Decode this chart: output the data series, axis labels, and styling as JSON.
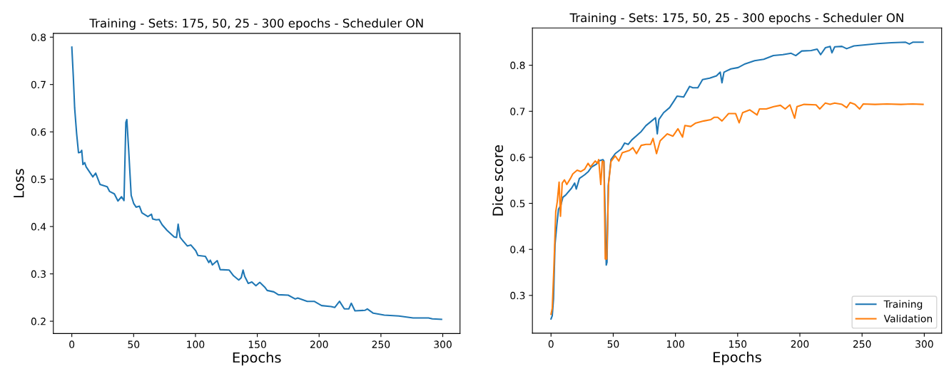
{
  "chart_data": [
    {
      "type": "line",
      "title": "Training - Sets: 175, 50, 25 - 300 epochs - Scheduler ON",
      "xlabel": "Epochs",
      "ylabel": "Loss",
      "xlim": [
        -14.95,
        313.95
      ],
      "ylim": [
        0.174,
        0.808
      ],
      "xticks": [
        0,
        50,
        100,
        150,
        200,
        250,
        300
      ],
      "yticks": [
        0.2,
        0.3,
        0.4,
        0.5,
        0.6,
        0.7,
        0.8
      ],
      "grid": false,
      "legend": false,
      "series": [
        {
          "color": "#1f77b4",
          "x": [
            0,
            1.2,
            2.3,
            3.9,
            5.4,
            7,
            8,
            9,
            10.4,
            11.6,
            17,
            19.3,
            22.8,
            28.6,
            30.6,
            34.4,
            37.3,
            40.2,
            42.2,
            43.7,
            44.5,
            46,
            48,
            50,
            52,
            54.7,
            56.7,
            61.5,
            64.4,
            65.4,
            68.3,
            70.6,
            73,
            77,
            82.8,
            84.7,
            86,
            87.6,
            93.4,
            96.3,
            100.2,
            102,
            108,
            110.8,
            112,
            113.7,
            117.6,
            120,
            127.3,
            130.8,
            135,
            137,
            138.5,
            139.8,
            142.7,
            145.6,
            148.9,
            152,
            156,
            158,
            163.4,
            167,
            175,
            180.7,
            182.7,
            190.4,
            196,
            202,
            209.7,
            212.6,
            216.5,
            220.4,
            224,
            226,
            229,
            237,
            239,
            243.8,
            252.7,
            264.5,
            276,
            288.5,
            291.5,
            299
          ],
          "values": [
            0.779,
            0.717,
            0.65,
            0.596,
            0.556,
            0.557,
            0.561,
            0.531,
            0.535,
            0.526,
            0.505,
            0.513,
            0.489,
            0.484,
            0.474,
            0.469,
            0.454,
            0.463,
            0.455,
            0.62,
            0.626,
            0.561,
            0.466,
            0.449,
            0.441,
            0.443,
            0.429,
            0.421,
            0.426,
            0.416,
            0.414,
            0.415,
            0.404,
            0.392,
            0.378,
            0.377,
            0.405,
            0.377,
            0.359,
            0.361,
            0.349,
            0.339,
            0.337,
            0.324,
            0.329,
            0.319,
            0.328,
            0.309,
            0.308,
            0.296,
            0.287,
            0.292,
            0.308,
            0.295,
            0.28,
            0.283,
            0.275,
            0.282,
            0.272,
            0.265,
            0.262,
            0.256,
            0.255,
            0.247,
            0.249,
            0.242,
            0.242,
            0.233,
            0.231,
            0.229,
            0.242,
            0.226,
            0.226,
            0.238,
            0.222,
            0.223,
            0.226,
            0.217,
            0.213,
            0.211,
            0.207,
            0.207,
            0.205,
            0.204
          ]
        }
      ]
    },
    {
      "type": "line",
      "title": "Training - Sets: 175, 50, 25 - 300 epochs - Scheduler ON",
      "xlabel": "Epochs",
      "ylabel": "Dice score",
      "xlim": [
        -14.95,
        313.95
      ],
      "ylim": [
        0.218,
        0.881
      ],
      "xticks": [
        0,
        50,
        100,
        150,
        200,
        250,
        300
      ],
      "yticks": [
        0.3,
        0.4,
        0.5,
        0.6,
        0.7,
        0.8
      ],
      "grid": false,
      "legend": "bottom right",
      "series": [
        {
          "name": "Training",
          "color": "#1f77b4",
          "x": [
            0,
            1,
            2,
            3.2,
            4.6,
            6,
            8,
            9.5,
            11.8,
            16.5,
            19,
            20.3,
            22.8,
            27,
            30,
            32.6,
            36.4,
            38.3,
            41.7,
            42.5,
            43.6,
            44.4,
            45,
            46,
            48.2,
            51.6,
            56.4,
            59.2,
            62,
            65,
            69.6,
            72.5,
            76.3,
            80,
            84,
            85.4,
            86.7,
            90.5,
            95.3,
            99,
            101.3,
            106.6,
            111.4,
            114,
            118,
            121.8,
            127.5,
            133,
            136,
            137.4,
            139,
            144.6,
            150.4,
            156,
            163.6,
            171,
            178.7,
            186.3,
            193,
            196.7,
            201.5,
            209,
            213.9,
            216.7,
            220.5,
            224.3,
            225.8,
            228,
            233.8,
            237.6,
            243.4,
            251,
            262.4,
            273.6,
            285,
            288,
            290.7,
            299
          ],
          "values": [
            0.249,
            0.256,
            0.292,
            0.41,
            0.451,
            0.487,
            0.497,
            0.513,
            0.518,
            0.533,
            0.544,
            0.531,
            0.554,
            0.562,
            0.569,
            0.579,
            0.585,
            0.592,
            0.595,
            0.592,
            0.462,
            0.366,
            0.372,
            0.538,
            0.595,
            0.608,
            0.618,
            0.631,
            0.628,
            0.638,
            0.649,
            0.656,
            0.669,
            0.677,
            0.686,
            0.651,
            0.682,
            0.697,
            0.708,
            0.723,
            0.733,
            0.731,
            0.754,
            0.751,
            0.751,
            0.769,
            0.772,
            0.777,
            0.785,
            0.762,
            0.785,
            0.792,
            0.795,
            0.803,
            0.81,
            0.813,
            0.821,
            0.823,
            0.826,
            0.821,
            0.831,
            0.832,
            0.835,
            0.823,
            0.838,
            0.841,
            0.827,
            0.84,
            0.841,
            0.836,
            0.842,
            0.844,
            0.847,
            0.849,
            0.85,
            0.846,
            0.85,
            0.85
          ]
        },
        {
          "name": "Validation",
          "color": "#ff7f0e",
          "x": [
            0,
            1,
            2.3,
            3.8,
            5,
            6.5,
            7.6,
            9,
            10.8,
            12.7,
            15.6,
            17.5,
            21,
            24,
            27,
            29.8,
            31.7,
            35.5,
            37.4,
            38.3,
            40,
            41.2,
            42.5,
            43.6,
            44.8,
            46.3,
            48.2,
            51.6,
            54.5,
            57.3,
            63,
            65.8,
            68.7,
            72.5,
            76.3,
            80,
            82,
            84.8,
            87.7,
            93.4,
            98,
            102,
            105.7,
            107.6,
            112.3,
            116,
            122.8,
            128.5,
            131.3,
            134,
            137.4,
            142.7,
            148.4,
            151.2,
            154,
            159.8,
            165.6,
            167.5,
            173,
            179,
            184.4,
            188.2,
            192,
            195.8,
            197.7,
            203.4,
            213,
            216,
            220.5,
            224.3,
            228,
            233.8,
            237.6,
            240.4,
            244.2,
            248,
            251,
            260.4,
            270,
            281.2,
            290.7,
            299
          ],
          "values": [
            0.259,
            0.272,
            0.359,
            0.482,
            0.503,
            0.546,
            0.472,
            0.544,
            0.551,
            0.541,
            0.554,
            0.564,
            0.572,
            0.569,
            0.574,
            0.587,
            0.579,
            0.592,
            0.587,
            0.595,
            0.541,
            0.592,
            0.59,
            0.379,
            0.379,
            0.544,
            0.591,
            0.603,
            0.592,
            0.61,
            0.615,
            0.621,
            0.608,
            0.626,
            0.628,
            0.628,
            0.641,
            0.608,
            0.636,
            0.651,
            0.646,
            0.662,
            0.644,
            0.669,
            0.667,
            0.674,
            0.679,
            0.682,
            0.687,
            0.687,
            0.679,
            0.695,
            0.695,
            0.675,
            0.697,
            0.703,
            0.692,
            0.705,
            0.705,
            0.71,
            0.713,
            0.705,
            0.714,
            0.685,
            0.71,
            0.715,
            0.714,
            0.705,
            0.718,
            0.715,
            0.718,
            0.715,
            0.708,
            0.719,
            0.715,
            0.705,
            0.716,
            0.715,
            0.716,
            0.715,
            0.716,
            0.715
          ]
        }
      ]
    }
  ]
}
